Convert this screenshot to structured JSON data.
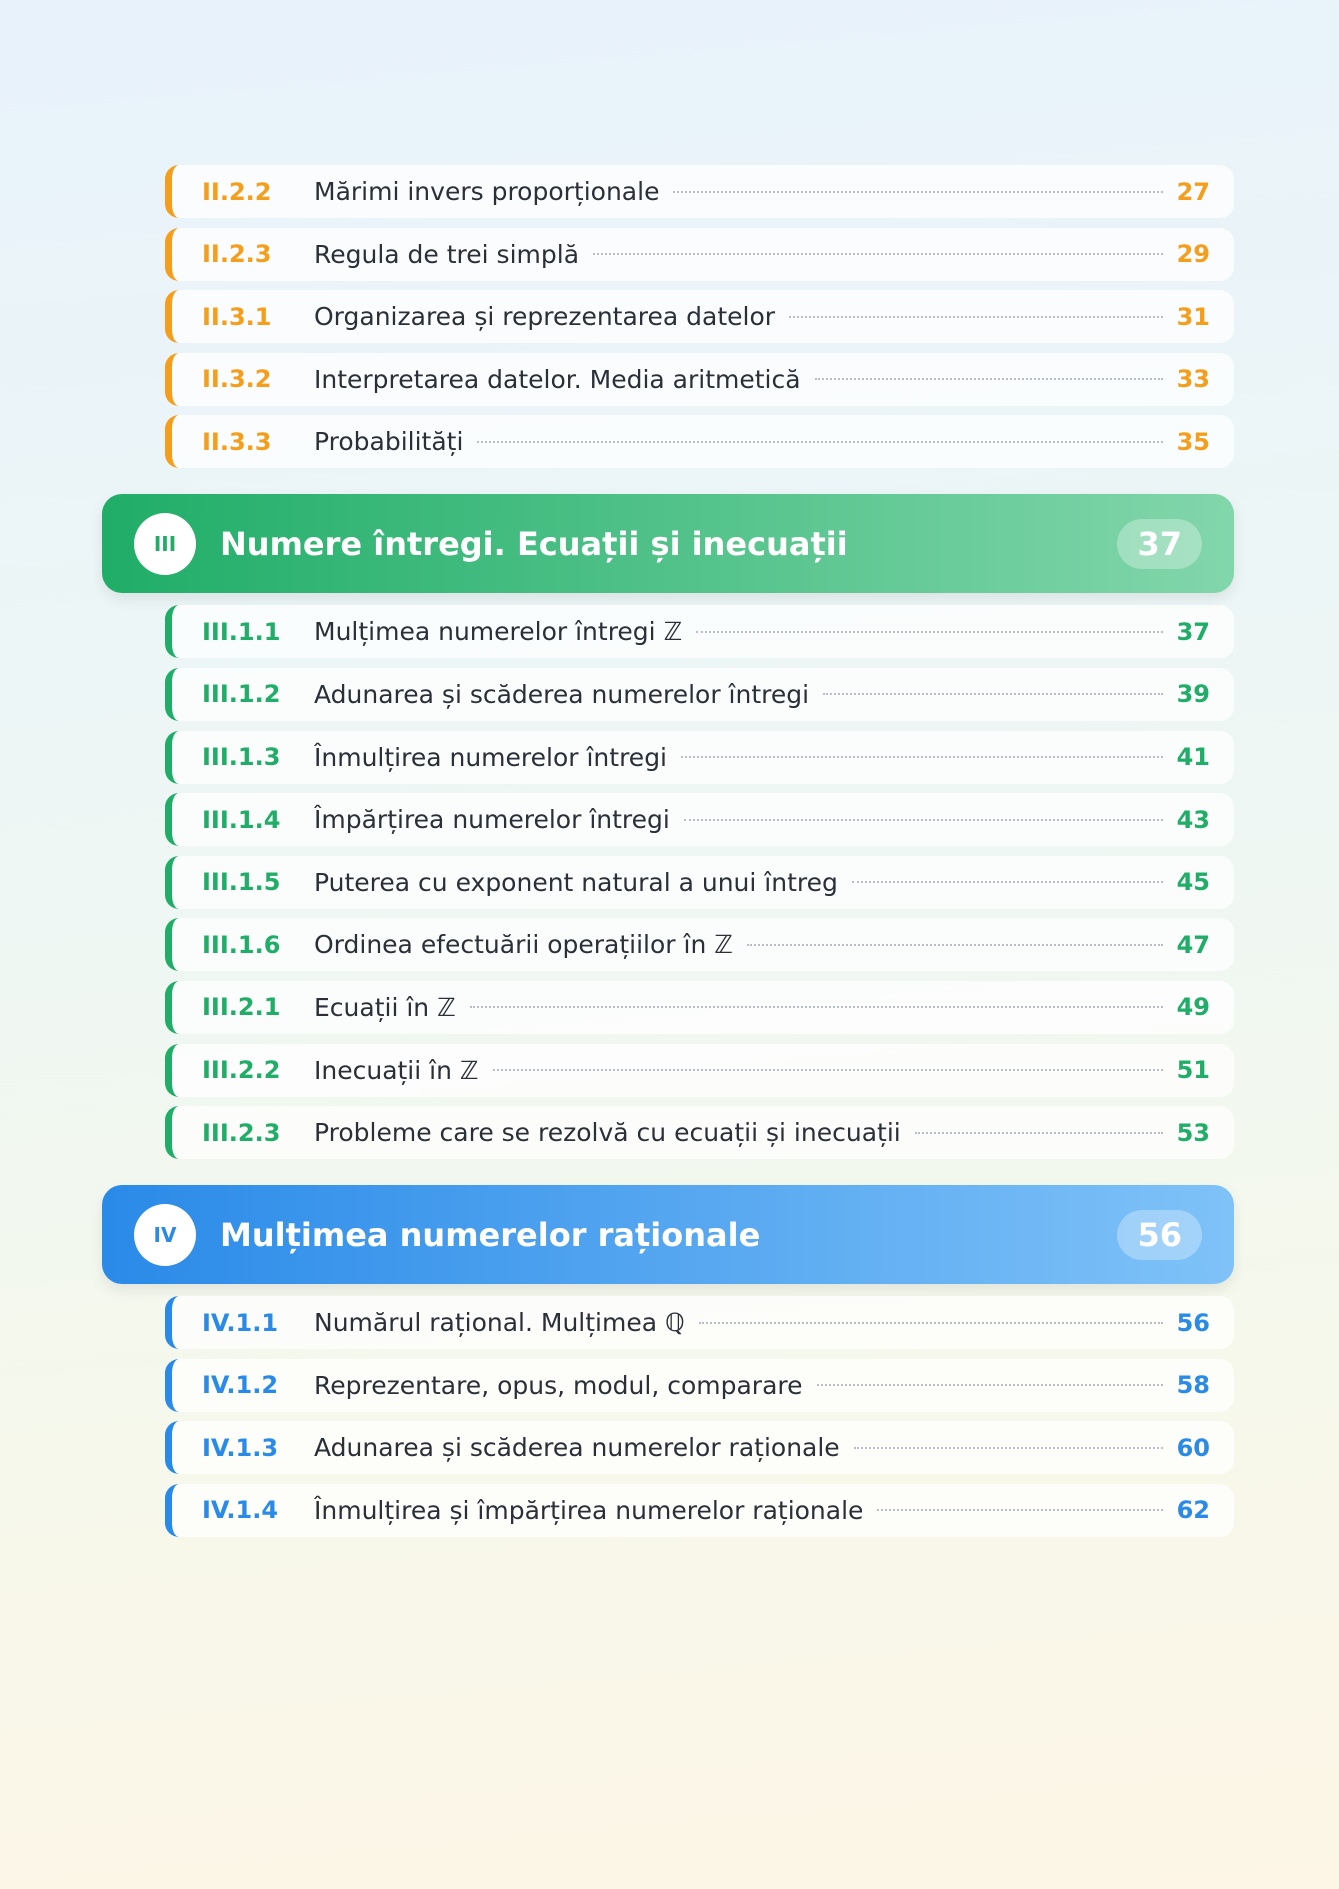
{
  "groups": [
    {
      "entries": [
        {
          "code": "II.2.2",
          "title": "Mărimi invers proporționale",
          "page": 27
        },
        {
          "code": "II.2.3",
          "title": "Regula de trei simplă",
          "page": 29
        },
        {
          "code": "II.3.1",
          "title": "Organizarea și reprezentarea datelor",
          "page": 31
        },
        {
          "code": "II.3.2",
          "title": "Interpretarea datelor. Media aritmetică",
          "page": 33
        },
        {
          "code": "II.3.3",
          "title": "Probabilități",
          "page": 35
        }
      ]
    },
    {
      "numeral": "III",
      "title": "Numere întregi. Ecuații și inecuații",
      "page": 37,
      "entries": [
        {
          "code": "III.1.1",
          "title": "Mulțimea numerelor întregi ℤ",
          "page": 37
        },
        {
          "code": "III.1.2",
          "title": "Adunarea și scăderea numerelor întregi",
          "page": 39
        },
        {
          "code": "III.1.3",
          "title": "Înmulțirea numerelor întregi",
          "page": 41
        },
        {
          "code": "III.1.4",
          "title": "Împărțirea numerelor întregi",
          "page": 43
        },
        {
          "code": "III.1.5",
          "title": "Puterea cu exponent natural a unui întreg",
          "page": 45
        },
        {
          "code": "III.1.6",
          "title": "Ordinea efectuării operațiilor în ℤ",
          "page": 47
        },
        {
          "code": "III.2.1",
          "title": "Ecuații în ℤ",
          "page": 49
        },
        {
          "code": "III.2.2",
          "title": "Inecuații în ℤ",
          "page": 51
        },
        {
          "code": "III.2.3",
          "title": "Probleme care se rezolvă cu ecuații și inecuații",
          "page": 53
        }
      ]
    },
    {
      "numeral": "IV",
      "title": "Mulțimea numerelor raționale",
      "page": 56,
      "entries": [
        {
          "code": "IV.1.1",
          "title": "Numărul rațional. Mulțimea ℚ",
          "page": 56
        },
        {
          "code": "IV.1.2",
          "title": "Reprezentare, opus, modul, comparare",
          "page": 58
        },
        {
          "code": "IV.1.3",
          "title": "Adunarea și scăderea numerelor raționale",
          "page": 60
        },
        {
          "code": "IV.1.4",
          "title": "Înmulțirea și împărțirea numerelor raționale",
          "page": 62
        }
      ]
    }
  ]
}
